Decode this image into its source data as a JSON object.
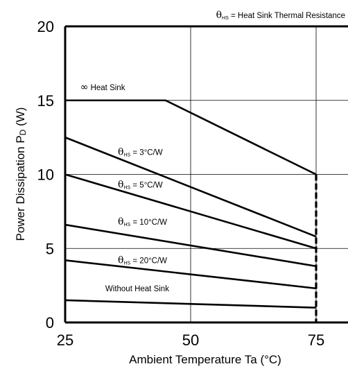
{
  "chart_data": {
    "type": "line",
    "ylabel_main": "Power Dissipation P",
    "ylabel_sub": "D",
    "ylabel_unit": " (W)",
    "xlabel": "Ambient Temperature Ta (°C)",
    "xlim": [
      25,
      80
    ],
    "ylim": [
      0,
      20
    ],
    "xticks": [
      25,
      50,
      75
    ],
    "yticks": [
      0,
      5,
      10,
      15,
      20
    ],
    "grid": true,
    "legend_note": {
      "theta": "θ",
      "sub": "HS",
      "text": " = Heat Sink Thermal Resistance"
    },
    "series": [
      {
        "x": [
          25,
          45,
          75
        ],
        "y": [
          15,
          15,
          10
        ]
      },
      {
        "x": [
          25,
          75
        ],
        "y": [
          12.5,
          5.8
        ]
      },
      {
        "x": [
          25,
          75
        ],
        "y": [
          10,
          5
        ]
      },
      {
        "x": [
          25,
          75
        ],
        "y": [
          6.6,
          3.8
        ]
      },
      {
        "x": [
          25,
          75
        ],
        "y": [
          4.2,
          2.3
        ]
      },
      {
        "x": [
          25,
          75
        ],
        "y": [
          1.5,
          1.0
        ]
      }
    ],
    "limit_line": {
      "x": 75,
      "y": [
        0,
        10
      ]
    },
    "annotations": [
      {
        "kind": "inf",
        "symbol": "∞",
        "text": " Heat Sink",
        "x": 28,
        "y": 15.7
      },
      {
        "kind": "theta",
        "theta": "θ",
        "sub": "HS",
        "text": " = 3°C/W",
        "x": 35.5,
        "y": 11.3
      },
      {
        "kind": "theta",
        "theta": "θ",
        "sub": "HS",
        "text": " = 5°C/W",
        "x": 35.5,
        "y": 9.1
      },
      {
        "kind": "theta",
        "theta": "θ",
        "sub": "HS",
        "text": " = 10°C/W",
        "x": 35.5,
        "y": 6.6
      },
      {
        "kind": "theta",
        "theta": "θ",
        "sub": "HS",
        "text": " = 20°C/W",
        "x": 35.5,
        "y": 4.0
      },
      {
        "kind": "plain",
        "text": "Without Heat Sink",
        "x": 33,
        "y": 2.1
      }
    ]
  }
}
